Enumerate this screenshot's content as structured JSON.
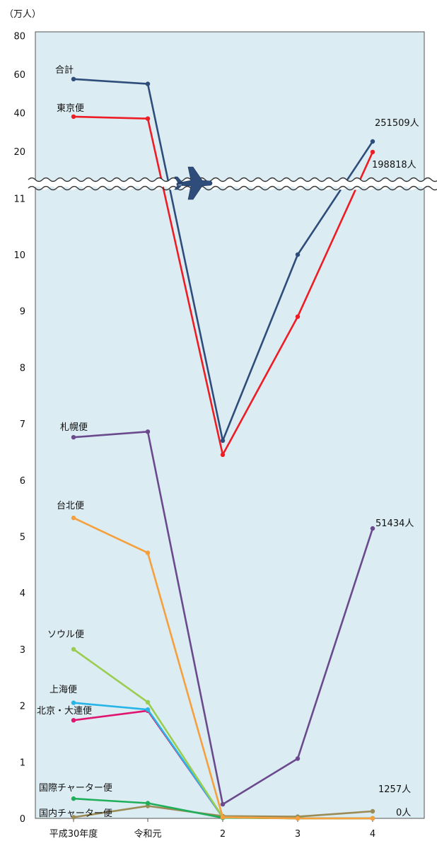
{
  "chart_data": {
    "type": "line",
    "unit_label": "（万人）",
    "categories": [
      "平成30年度",
      "令和元",
      "2",
      "3",
      "4"
    ],
    "y_ticks_lower": [
      "0",
      "1",
      "2",
      "3",
      "4",
      "5",
      "6",
      "7",
      "8",
      "9",
      "10",
      "11"
    ],
    "y_ticks_upper": [
      "20",
      "40",
      "60",
      "80"
    ],
    "axis_break": true,
    "grid": false,
    "background": "#dbecf3",
    "series": [
      {
        "name": "合計",
        "color": "#2e4d7b",
        "values": [
          57.5,
          55.0,
          6.7,
          10.0,
          25.1509
        ]
      },
      {
        "name": "東京便",
        "color": "#ee1c24",
        "values": [
          38.0,
          37.0,
          6.45,
          8.9,
          19.8818
        ]
      },
      {
        "name": "札幌便",
        "color": "#6a4a8c",
        "values": [
          6.76,
          6.86,
          0.25,
          1.06,
          5.1434
        ]
      },
      {
        "name": "台北便",
        "color": "#f5a03c",
        "values": [
          5.33,
          4.71,
          0.02,
          0.0,
          0.0
        ]
      },
      {
        "name": "ソウル便",
        "color": "#9acd4f",
        "values": [
          3.0,
          2.06,
          0.02,
          0.0,
          0.0
        ]
      },
      {
        "name": "上海便",
        "color": "#27b5e8",
        "values": [
          2.05,
          1.93,
          0.02,
          0.0,
          0.0
        ]
      },
      {
        "name": "北京・大連便",
        "color": "#e0156f",
        "values": [
          1.74,
          1.91,
          0.02,
          0.0,
          0.0
        ]
      },
      {
        "name": "国際チャーター便",
        "color": "#1fae5a",
        "values": [
          0.35,
          0.27,
          0.01,
          0.0,
          0.0
        ]
      },
      {
        "name": "国内チャーター便",
        "color": "#9b8b55",
        "values": [
          0.02,
          0.22,
          0.04,
          0.03,
          0.1257
        ]
      }
    ],
    "annotations": [
      {
        "series": "合計",
        "text": "251509人"
      },
      {
        "series": "東京便",
        "text": "198818人"
      },
      {
        "series": "札幌便",
        "text": "51434人"
      },
      {
        "series": "国内チャーター便",
        "text": "1257人"
      },
      {
        "series": "国際チャーター便",
        "text": "0人"
      }
    ]
  }
}
